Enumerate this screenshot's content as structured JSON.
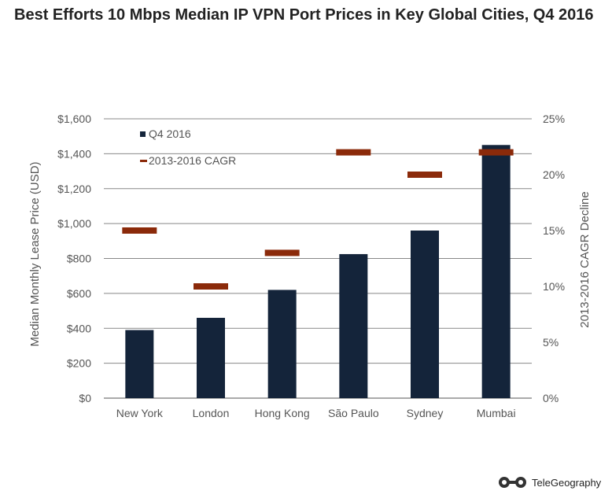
{
  "title": "Best Efforts 10 Mbps Median IP VPN Port Prices in Key Global Cities, Q4 2016",
  "source": "TeleGeography",
  "chart_data": {
    "type": "bar",
    "title": "Best Efforts 10 Mbps Median IP VPN Port Prices in Key Global Cities, Q4 2016",
    "categories": [
      "New York",
      "London",
      "Hong Kong",
      "São Paulo",
      "Sydney",
      "Mumbai"
    ],
    "series": [
      {
        "name": "Q4 2016",
        "type": "bar",
        "axis": "left",
        "color": "#14243a",
        "values": [
          390,
          460,
          620,
          825,
          960,
          1450
        ]
      },
      {
        "name": "2013-2016 CAGR",
        "type": "marker",
        "axis": "right",
        "color": "#8b2a0a",
        "values": [
          15.0,
          10.0,
          13.0,
          22.0,
          20.0,
          22.0
        ]
      }
    ],
    "ylabel": "Median Monthly Lease Price (USD)",
    "ylim": [
      0,
      1600
    ],
    "yticks": [
      0,
      200,
      400,
      600,
      800,
      1000,
      1200,
      1400,
      1600
    ],
    "ytick_labels": [
      "$0",
      "$200",
      "$400",
      "$600",
      "$800",
      "$1,000",
      "$1,200",
      "$1,400",
      "$1,600"
    ],
    "y2label": "2013-2016 CAGR Decline",
    "y2lim": [
      0,
      25
    ],
    "y2ticks": [
      0,
      5,
      10,
      15,
      20,
      25
    ],
    "y2tick_labels": [
      "0%",
      "5%",
      "10%",
      "15%",
      "20%",
      "25%"
    ],
    "grid": true,
    "legend_position": "top-left"
  }
}
